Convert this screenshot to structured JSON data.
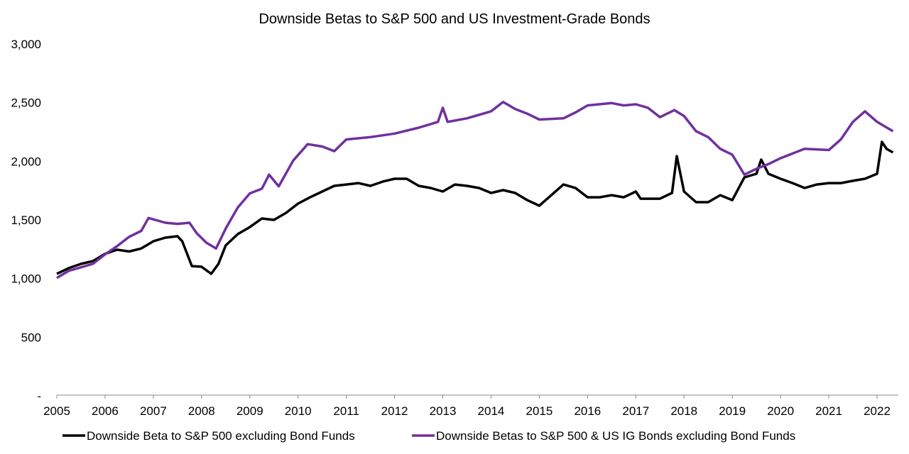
{
  "chart_data": {
    "type": "line",
    "title": "Downside Betas to S&P 500 and US Investment-Grade Bonds",
    "xlabel": "",
    "ylabel": "",
    "xlim": [
      2005,
      2022.35
    ],
    "ylim": [
      0,
      3000
    ],
    "x_ticks": [
      "2005",
      "2006",
      "2007",
      "2008",
      "2009",
      "2010",
      "2011",
      "2012",
      "2013",
      "2014",
      "2015",
      "2016",
      "2017",
      "2018",
      "2019",
      "2020",
      "2021",
      "2022"
    ],
    "y_ticks": [
      {
        "value": 0,
        "label": "-"
      },
      {
        "value": 500,
        "label": "500"
      },
      {
        "value": 1000,
        "label": "1,000"
      },
      {
        "value": 1500,
        "label": "1,500"
      },
      {
        "value": 2000,
        "label": "2,000"
      },
      {
        "value": 2500,
        "label": "2,500"
      },
      {
        "value": 3000,
        "label": "3,000"
      }
    ],
    "grid": false,
    "legend_position": "bottom",
    "series": [
      {
        "name": "Downside Beta to S&P 500 excluding Bond Funds",
        "color": "#000000",
        "x": [
          2005.0,
          2005.25,
          2005.5,
          2005.75,
          2006.0,
          2006.25,
          2006.5,
          2006.75,
          2007.0,
          2007.25,
          2007.5,
          2007.6,
          2007.8,
          2008.0,
          2008.2,
          2008.35,
          2008.5,
          2008.75,
          2009.0,
          2009.25,
          2009.5,
          2009.75,
          2010.0,
          2010.25,
          2010.5,
          2010.75,
          2011.0,
          2011.25,
          2011.5,
          2011.75,
          2012.0,
          2012.25,
          2012.5,
          2012.75,
          2013.0,
          2013.25,
          2013.5,
          2013.75,
          2014.0,
          2014.25,
          2014.5,
          2014.75,
          2015.0,
          2015.25,
          2015.5,
          2015.75,
          2016.0,
          2016.25,
          2016.5,
          2016.75,
          2017.0,
          2017.1,
          2017.5,
          2017.75,
          2017.85,
          2018.0,
          2018.25,
          2018.5,
          2018.75,
          2019.0,
          2019.25,
          2019.5,
          2019.6,
          2019.75,
          2020.0,
          2020.25,
          2020.5,
          2020.75,
          2021.0,
          2021.25,
          2021.5,
          2021.75,
          2022.0,
          2022.1,
          2022.2,
          2022.33
        ],
        "y": [
          1034,
          1083,
          1119,
          1143,
          1204,
          1240,
          1225,
          1250,
          1312,
          1343,
          1355,
          1312,
          1100,
          1095,
          1034,
          1119,
          1276,
          1373,
          1433,
          1506,
          1494,
          1554,
          1633,
          1687,
          1736,
          1784,
          1796,
          1808,
          1784,
          1820,
          1845,
          1845,
          1784,
          1766,
          1736,
          1796,
          1784,
          1766,
          1724,
          1748,
          1724,
          1663,
          1615,
          1705,
          1796,
          1766,
          1687,
          1687,
          1705,
          1687,
          1736,
          1675,
          1675,
          1724,
          2038,
          1736,
          1645,
          1645,
          1705,
          1663,
          1857,
          1887,
          2008,
          1887,
          1845,
          1808,
          1766,
          1796,
          1808,
          1808,
          1827,
          1845,
          1887,
          2159,
          2099,
          2069
        ]
      },
      {
        "name": "Downside Betas to S&P 500 & US IG Bonds excluding Bond Funds",
        "color": "#7030A0",
        "x": [
          2005.0,
          2005.25,
          2005.5,
          2005.75,
          2006.0,
          2006.25,
          2006.5,
          2006.75,
          2006.9,
          2007.25,
          2007.5,
          2007.75,
          2007.9,
          2008.1,
          2008.3,
          2008.5,
          2008.75,
          2009.0,
          2009.25,
          2009.4,
          2009.6,
          2009.9,
          2010.2,
          2010.5,
          2010.75,
          2011.0,
          2011.5,
          2012.0,
          2012.5,
          2012.9,
          2013.0,
          2013.1,
          2013.5,
          2014.0,
          2014.25,
          2014.5,
          2014.75,
          2015.0,
          2015.5,
          2015.75,
          2016.0,
          2016.5,
          2016.75,
          2017.0,
          2017.25,
          2017.5,
          2017.8,
          2018.0,
          2018.25,
          2018.5,
          2018.75,
          2019.0,
          2019.25,
          2019.5,
          2019.75,
          2020.0,
          2020.5,
          2021.0,
          2021.25,
          2021.5,
          2021.75,
          2022.0,
          2022.25,
          2022.33
        ],
        "y": [
          1000,
          1060,
          1090,
          1120,
          1200,
          1270,
          1350,
          1400,
          1510,
          1470,
          1460,
          1470,
          1380,
          1300,
          1250,
          1420,
          1600,
          1720,
          1760,
          1880,
          1780,
          2000,
          2140,
          2120,
          2080,
          2180,
          2200,
          2230,
          2280,
          2330,
          2450,
          2330,
          2360,
          2420,
          2500,
          2440,
          2400,
          2350,
          2360,
          2410,
          2470,
          2490,
          2470,
          2480,
          2450,
          2370,
          2430,
          2380,
          2250,
          2200,
          2100,
          2050,
          1880,
          1930,
          1970,
          2020,
          2100,
          2090,
          2180,
          2330,
          2420,
          2330,
          2270,
          2250
        ]
      }
    ]
  }
}
